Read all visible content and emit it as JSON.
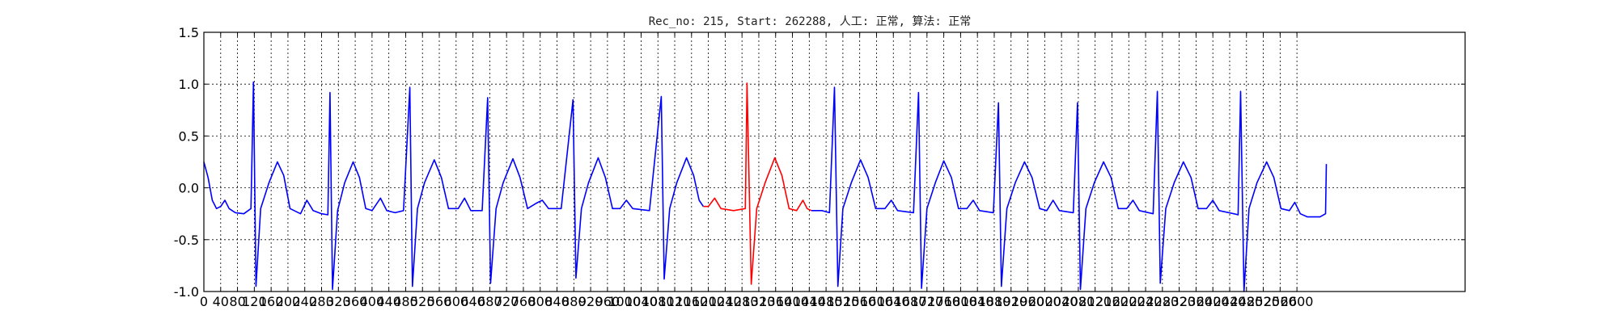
{
  "chart_data": {
    "type": "line",
    "title": "Rec_no: 215, Start: 262288, 人工: 正常, 算法: 正常",
    "xlabel": "",
    "ylabel": "",
    "xlim": [
      0,
      3000
    ],
    "ylim": [
      -1.0,
      1.5
    ],
    "y_ticks": [
      "-1.0",
      "-0.5",
      "0.0",
      "0.5",
      "1.0",
      "1.5"
    ],
    "x_ticks": [
      "0",
      "40",
      "80",
      "120",
      "160",
      "200",
      "240",
      "280",
      "320",
      "360",
      "400",
      "440",
      "480",
      "520",
      "560",
      "600",
      "640",
      "680",
      "720",
      "760",
      "800",
      "840",
      "880",
      "920",
      "960",
      "1000",
      "1040",
      "1080",
      "1120",
      "1160",
      "1200",
      "1240",
      "1280",
      "1320",
      "1360",
      "1400",
      "1440",
      "1480",
      "1520",
      "1560",
      "1600",
      "1640",
      "1680",
      "1720",
      "1760",
      "1800",
      "1840",
      "1880",
      "1920",
      "1960",
      "2000",
      "2040",
      "2080",
      "2120",
      "2160",
      "2200",
      "2240",
      "2280",
      "2320",
      "2360",
      "2400",
      "2440",
      "2480",
      "2520",
      "2560",
      "2600"
    ],
    "grid": true,
    "series": [
      {
        "color": "#0000ff",
        "points": [
          [
            0,
            0.25
          ],
          [
            10,
            0.1
          ],
          [
            20,
            -0.12
          ],
          [
            30,
            -0.2
          ],
          [
            40,
            -0.18
          ],
          [
            50,
            -0.12
          ],
          [
            60,
            -0.2
          ],
          [
            75,
            -0.24
          ],
          [
            95,
            -0.25
          ],
          [
            112,
            -0.2
          ],
          [
            118,
            1.02
          ],
          [
            124,
            -0.95
          ],
          [
            135,
            -0.2
          ],
          [
            155,
            0.05
          ],
          [
            175,
            0.25
          ],
          [
            190,
            0.12
          ],
          [
            205,
            -0.2
          ],
          [
            230,
            -0.25
          ],
          [
            245,
            -0.12
          ],
          [
            260,
            -0.22
          ],
          [
            280,
            -0.25
          ],
          [
            295,
            -0.26
          ],
          [
            300,
            0.92
          ],
          [
            306,
            -0.98
          ],
          [
            318,
            -0.22
          ],
          [
            335,
            0.05
          ],
          [
            355,
            0.25
          ],
          [
            370,
            0.1
          ],
          [
            385,
            -0.2
          ],
          [
            400,
            -0.22
          ],
          [
            420,
            -0.1
          ],
          [
            435,
            -0.22
          ],
          [
            455,
            -0.24
          ],
          [
            475,
            -0.22
          ],
          [
            490,
            0.97
          ],
          [
            496,
            -0.95
          ],
          [
            508,
            -0.2
          ],
          [
            525,
            0.05
          ],
          [
            548,
            0.27
          ],
          [
            565,
            0.1
          ],
          [
            582,
            -0.2
          ],
          [
            605,
            -0.2
          ],
          [
            620,
            -0.1
          ],
          [
            635,
            -0.22
          ],
          [
            662,
            -0.22
          ],
          [
            675,
            0.87
          ],
          [
            682,
            -0.92
          ],
          [
            695,
            -0.2
          ],
          [
            712,
            0.05
          ],
          [
            735,
            0.28
          ],
          [
            752,
            0.1
          ],
          [
            770,
            -0.2
          ],
          [
            790,
            -0.15
          ],
          [
            805,
            -0.12
          ],
          [
            820,
            -0.2
          ],
          [
            850,
            -0.2
          ],
          [
            878,
            0.85
          ],
          [
            885,
            -0.87
          ],
          [
            898,
            -0.2
          ],
          [
            915,
            0.05
          ],
          [
            938,
            0.29
          ],
          [
            955,
            0.1
          ],
          [
            972,
            -0.2
          ],
          [
            990,
            -0.2
          ],
          [
            1005,
            -0.12
          ],
          [
            1020,
            -0.2
          ],
          [
            1060,
            -0.22
          ],
          [
            1088,
            0.88
          ],
          [
            1095,
            -0.88
          ],
          [
            1108,
            -0.2
          ],
          [
            1125,
            0.05
          ],
          [
            1148,
            0.29
          ],
          [
            1165,
            0.12
          ],
          [
            1178,
            -0.12
          ],
          [
            1188,
            -0.18
          ]
        ]
      },
      {
        "color": "#ff0000",
        "points": [
          [
            1188,
            -0.18
          ],
          [
            1200,
            -0.18
          ],
          [
            1215,
            -0.1
          ],
          [
            1230,
            -0.2
          ],
          [
            1260,
            -0.22
          ],
          [
            1288,
            -0.2
          ],
          [
            1292,
            1.01
          ],
          [
            1302,
            -0.93
          ],
          [
            1315,
            -0.2
          ],
          [
            1335,
            0.05
          ],
          [
            1358,
            0.29
          ],
          [
            1375,
            0.12
          ],
          [
            1392,
            -0.2
          ],
          [
            1410,
            -0.22
          ],
          [
            1425,
            -0.12
          ],
          [
            1435,
            -0.2
          ],
          [
            1445,
            -0.22
          ]
        ]
      },
      {
        "color": "#0000ff",
        "points": [
          [
            1445,
            -0.22
          ],
          [
            1470,
            -0.22
          ],
          [
            1488,
            -0.24
          ],
          [
            1500,
            0.97
          ],
          [
            1508,
            -0.95
          ],
          [
            1520,
            -0.2
          ],
          [
            1540,
            0.05
          ],
          [
            1562,
            0.27
          ],
          [
            1580,
            0.1
          ],
          [
            1598,
            -0.2
          ],
          [
            1620,
            -0.2
          ],
          [
            1635,
            -0.12
          ],
          [
            1650,
            -0.22
          ],
          [
            1688,
            -0.24
          ],
          [
            1700,
            0.92
          ],
          [
            1707,
            -0.97
          ],
          [
            1720,
            -0.2
          ],
          [
            1740,
            0.05
          ],
          [
            1760,
            0.26
          ],
          [
            1778,
            0.1
          ],
          [
            1795,
            -0.2
          ],
          [
            1815,
            -0.2
          ],
          [
            1830,
            -0.12
          ],
          [
            1845,
            -0.22
          ],
          [
            1878,
            -0.24
          ],
          [
            1890,
            0.82
          ],
          [
            1897,
            -0.95
          ],
          [
            1910,
            -0.2
          ],
          [
            1930,
            0.05
          ],
          [
            1952,
            0.25
          ],
          [
            1970,
            0.1
          ],
          [
            1988,
            -0.2
          ],
          [
            2005,
            -0.22
          ],
          [
            2020,
            -0.12
          ],
          [
            2035,
            -0.22
          ],
          [
            2068,
            -0.24
          ],
          [
            2078,
            0.82
          ],
          [
            2085,
            -0.98
          ],
          [
            2098,
            -0.2
          ],
          [
            2118,
            0.05
          ],
          [
            2140,
            0.25
          ],
          [
            2158,
            0.1
          ],
          [
            2175,
            -0.2
          ],
          [
            2195,
            -0.2
          ],
          [
            2210,
            -0.12
          ],
          [
            2225,
            -0.22
          ],
          [
            2258,
            -0.25
          ],
          [
            2268,
            0.93
          ],
          [
            2275,
            -0.92
          ],
          [
            2288,
            -0.2
          ],
          [
            2308,
            0.05
          ],
          [
            2330,
            0.25
          ],
          [
            2348,
            0.1
          ],
          [
            2365,
            -0.2
          ],
          [
            2385,
            -0.2
          ],
          [
            2400,
            -0.12
          ],
          [
            2415,
            -0.22
          ],
          [
            2450,
            -0.25
          ],
          [
            2460,
            -0.26
          ],
          [
            2466,
            0.93
          ],
          [
            2474,
            -1.0
          ],
          [
            2486,
            -0.2
          ],
          [
            2505,
            0.05
          ],
          [
            2528,
            0.25
          ],
          [
            2545,
            0.1
          ],
          [
            2562,
            -0.2
          ],
          [
            2582,
            -0.22
          ],
          [
            2595,
            -0.14
          ],
          [
            2608,
            -0.25
          ],
          [
            2625,
            -0.28
          ],
          [
            2655,
            -0.28
          ],
          [
            2668,
            -0.25
          ],
          [
            2670,
            0.23
          ]
        ]
      }
    ]
  }
}
